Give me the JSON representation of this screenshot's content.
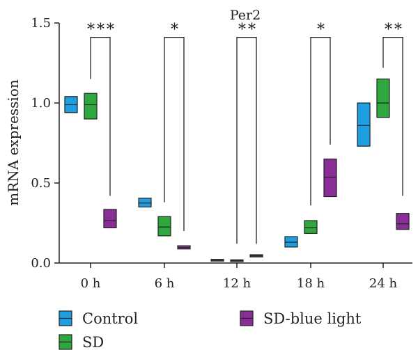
{
  "chart_data": {
    "type": "box",
    "title": "Per2",
    "xlabel": "",
    "ylabel": "mRNA expression",
    "ylim": [
      0,
      1.5
    ],
    "yticks": [
      "0.0",
      "0.5",
      "1.0",
      "1.5"
    ],
    "categories": [
      "0 h",
      "6 h",
      "12 h",
      "18 h",
      "24 h"
    ],
    "series": [
      {
        "name": "Control",
        "color": "#1f9fe3",
        "boxes": [
          {
            "low": 0.94,
            "median": 0.99,
            "high": 1.04
          },
          {
            "low": 0.35,
            "median": 0.375,
            "high": 0.405
          },
          {
            "low": 0.013,
            "median": 0.018,
            "high": 0.023
          },
          {
            "low": 0.1,
            "median": 0.13,
            "high": 0.165
          },
          {
            "low": 0.73,
            "median": 0.86,
            "high": 1.0
          }
        ]
      },
      {
        "name": "SD",
        "color": "#2ea83e",
        "boxes": [
          {
            "low": 0.9,
            "median": 0.99,
            "high": 1.06
          },
          {
            "low": 0.17,
            "median": 0.225,
            "high": 0.29
          },
          {
            "low": 0.013,
            "median": 0.016,
            "high": 0.02
          },
          {
            "low": 0.185,
            "median": 0.22,
            "high": 0.265
          },
          {
            "low": 0.91,
            "median": 1.0,
            "high": 1.15
          }
        ]
      },
      {
        "name": "SD-blue light",
        "color": "#8a2d96",
        "boxes": [
          {
            "low": 0.22,
            "median": 0.265,
            "high": 0.335
          },
          {
            "low": 0.088,
            "median": 0.097,
            "high": 0.108
          },
          {
            "low": 0.038,
            "median": 0.045,
            "high": 0.052
          },
          {
            "low": 0.415,
            "median": 0.535,
            "high": 0.65
          },
          {
            "low": 0.21,
            "median": 0.245,
            "high": 0.31
          }
        ]
      }
    ],
    "significance": [
      {
        "category": "0 h",
        "label": "***",
        "top": 1.41,
        "left_end": 1.15,
        "right_end": 0.42
      },
      {
        "category": "6 h",
        "label": "*",
        "top": 1.41,
        "left_end": 0.38,
        "right_end": 0.2
      },
      {
        "category": "12 h",
        "label": "**",
        "top": 1.41,
        "left_end": 0.12,
        "right_end": 0.12
      },
      {
        "category": "18 h",
        "label": "*",
        "top": 1.41,
        "left_end": 0.36,
        "right_end": 0.74
      },
      {
        "category": "24 h",
        "label": "**",
        "top": 1.41,
        "left_end": 1.22,
        "right_end": 0.42
      }
    ],
    "legend": [
      "Control",
      "SD",
      "SD-blue light"
    ],
    "legend_position": "bottom"
  }
}
